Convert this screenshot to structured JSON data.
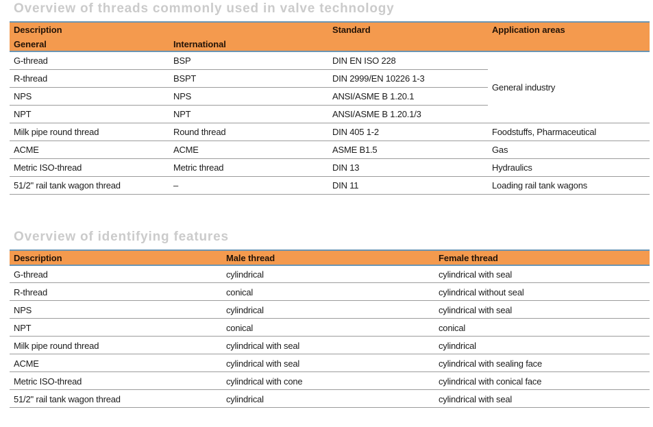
{
  "colors": {
    "header_bg": "#F49A4E",
    "header_text": "#231307",
    "blue_line": "#6B95B3",
    "row_line": "#9B9B9B",
    "title_color": "#CBCBCB",
    "cell_text": "#1B1B1B",
    "page_bg": "#FFFFFF"
  },
  "tables": [
    {
      "title": "Overview of threads commonly used in valve technology",
      "header": {
        "description": "Description",
        "general": "General",
        "international": "International",
        "standard": "Standard",
        "application_areas": "Application areas"
      },
      "rows": [
        [
          "G-thread",
          "BSP",
          "DIN EN ISO 228",
          {
            "text": "General industry",
            "rowspan": 4
          }
        ],
        [
          "R-thread",
          "BSPT",
          "DIN 2999/EN 10226 1-3"
        ],
        [
          "NPS",
          "NPS",
          "ANSI/ASME B 1.20.1"
        ],
        [
          "NPT",
          "NPT",
          "ANSI/ASME B 1.20.1/3"
        ],
        [
          "Milk pipe round thread",
          "Round thread",
          "DIN 405 1-2",
          "Foodstuffs, Pharmaceutical"
        ],
        [
          "ACME",
          "ACME",
          "ASME B1.5",
          "Gas"
        ],
        [
          "Metric ISO-thread",
          "Metric thread",
          "DIN 13",
          "Hydraulics"
        ],
        [
          "51/2\" rail tank wagon thread",
          "–",
          "DIN 11",
          "Loading rail tank wagons"
        ]
      ]
    },
    {
      "title": "Overview of identifying features",
      "header": {
        "description": "Description",
        "male_thread": "Male thread",
        "female_thread": "Female thread"
      },
      "rows": [
        [
          "G-thread",
          "cylindrical",
          "cylindrical with seal"
        ],
        [
          "R-thread",
          "conical",
          "cylindrical without seal"
        ],
        [
          "NPS",
          "cylindrical",
          "cylindrical with seal"
        ],
        [
          "NPT",
          "conical",
          "conical"
        ],
        [
          "Milk pipe round thread",
          "cylindrical with seal",
          "cylindrical"
        ],
        [
          "ACME",
          "cylindrical with seal",
          "cylindrical with sealing face"
        ],
        [
          "Metric ISO-thread",
          "cylindrical with cone",
          "cylindrical with conical face"
        ],
        [
          "51/2\" rail tank wagon thread",
          "cylindrical",
          "cylindrical with seal"
        ]
      ]
    }
  ]
}
